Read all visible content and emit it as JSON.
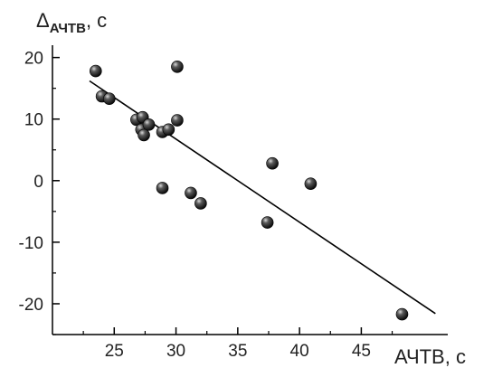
{
  "chart_data": {
    "type": "scatter",
    "xlabel": "АЧТВ, с",
    "ylabel": {
      "main": "Δ",
      "sub": "АЧТВ",
      "suffix": ", с"
    },
    "xlim": [
      20,
      52
    ],
    "ylim": [
      -25,
      22
    ],
    "x_ticks": [
      25,
      30,
      35,
      40,
      45
    ],
    "y_ticks": [
      20,
      10,
      0,
      -10,
      -20
    ],
    "x_tick_labels": [
      "25",
      "30",
      "35",
      "40",
      "45"
    ],
    "y_tick_labels": [
      "20",
      "10",
      "0",
      "-10",
      "-20"
    ],
    "grid": false,
    "points": [
      {
        "x": 23.5,
        "y": 17.8
      },
      {
        "x": 24.0,
        "y": 13.7
      },
      {
        "x": 24.6,
        "y": 13.3
      },
      {
        "x": 26.8,
        "y": 9.9
      },
      {
        "x": 27.3,
        "y": 10.3
      },
      {
        "x": 27.2,
        "y": 8.3
      },
      {
        "x": 27.4,
        "y": 7.4
      },
      {
        "x": 27.8,
        "y": 9.1
      },
      {
        "x": 28.9,
        "y": 7.9
      },
      {
        "x": 29.4,
        "y": 8.3
      },
      {
        "x": 30.1,
        "y": 9.8
      },
      {
        "x": 30.1,
        "y": 18.5
      },
      {
        "x": 28.9,
        "y": -1.2
      },
      {
        "x": 31.2,
        "y": -2.0
      },
      {
        "x": 32.0,
        "y": -3.7
      },
      {
        "x": 37.4,
        "y": -6.8
      },
      {
        "x": 37.8,
        "y": 2.8
      },
      {
        "x": 40.9,
        "y": -0.5
      },
      {
        "x": 48.3,
        "y": -21.7
      }
    ],
    "trendline": {
      "x": [
        23.0,
        51.0
      ],
      "y": [
        16.2,
        -21.6
      ]
    }
  }
}
